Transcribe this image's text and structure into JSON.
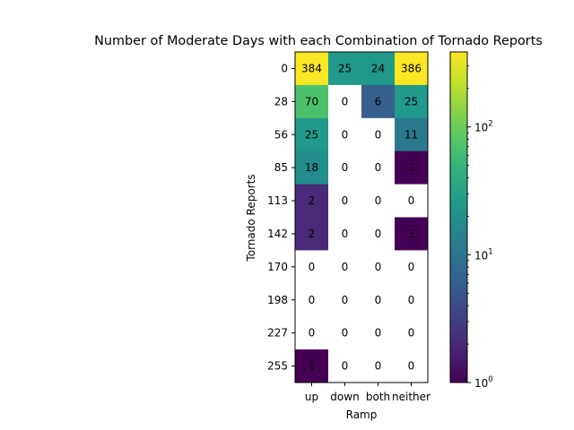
{
  "chart_data": {
    "type": "heatmap",
    "title": "Number of Moderate Days with each Combination of Tornado Reports",
    "xlabel": "Ramp",
    "ylabel": "Tornado Reports",
    "x_categories": [
      "up",
      "down",
      "both",
      "neither"
    ],
    "y_categories": [
      "0",
      "28",
      "56",
      "85",
      "113",
      "142",
      "170",
      "198",
      "227",
      "255"
    ],
    "values": [
      [
        384,
        25,
        24,
        386
      ],
      [
        70,
        0,
        6,
        25
      ],
      [
        25,
        0,
        0,
        11
      ],
      [
        18,
        0,
        0,
        1
      ],
      [
        2,
        0,
        0,
        0
      ],
      [
        2,
        0,
        0,
        1
      ],
      [
        0,
        0,
        0,
        0
      ],
      [
        0,
        0,
        0,
        0
      ],
      [
        0,
        0,
        0,
        0
      ],
      [
        1,
        0,
        0,
        0
      ]
    ],
    "colorbar": {
      "scale": "log",
      "min": 1,
      "max": 386,
      "colormap": "viridis",
      "tick_values": [
        1,
        10,
        100
      ],
      "tick_labels": [
        "10^0",
        "10^1",
        "10^2"
      ]
    },
    "zero_color": "#ffffff",
    "grid": false
  }
}
